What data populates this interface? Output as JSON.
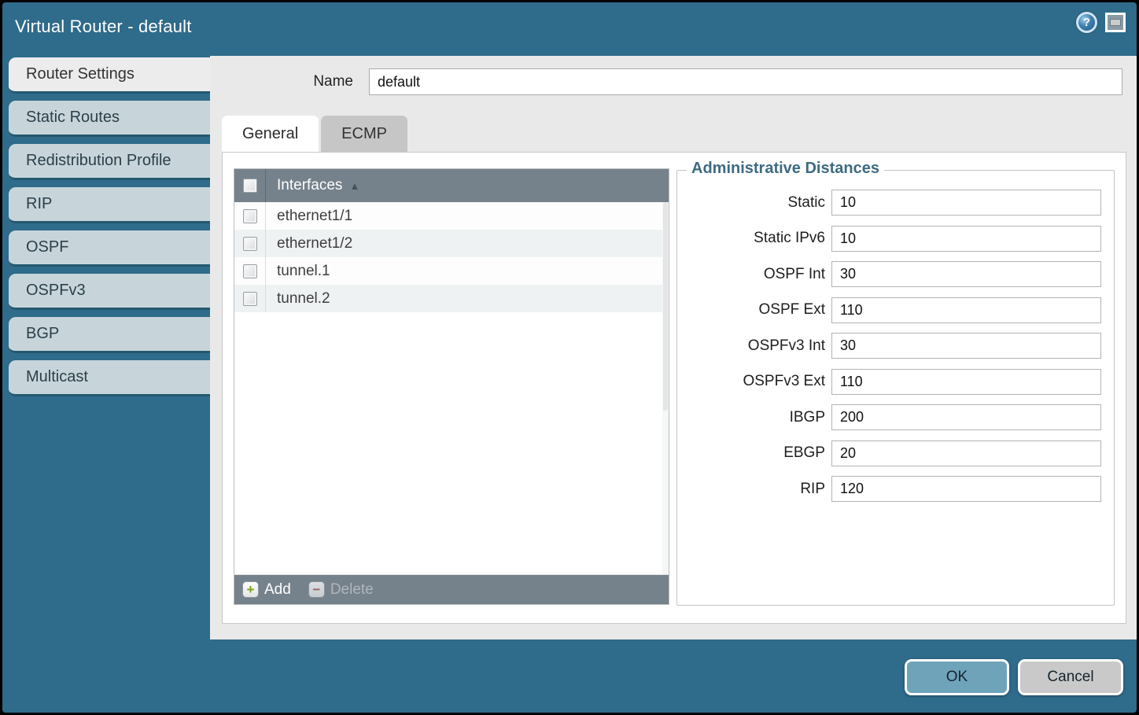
{
  "window": {
    "title": "Virtual Router - default",
    "icons": {
      "help": "?",
      "window": "window-restore"
    }
  },
  "colors": {
    "dialog_teal": "#2F6B8A",
    "sidebar_tab": "#C7D5DA",
    "content_bg": "#E9E9E9",
    "table_header": "#76828B",
    "ok_button": "#6FA3BA",
    "cancel_button": "#C9C9C9",
    "legend_text": "#3E6B82",
    "add_icon_green": "#7BA314",
    "delete_icon_red": "#9E5B50"
  },
  "sidebar": {
    "items": [
      {
        "label": "Router Settings",
        "active": true
      },
      {
        "label": "Static Routes",
        "active": false
      },
      {
        "label": "Redistribution Profile",
        "active": false
      },
      {
        "label": "RIP",
        "active": false
      },
      {
        "label": "OSPF",
        "active": false
      },
      {
        "label": "OSPFv3",
        "active": false
      },
      {
        "label": "BGP",
        "active": false
      },
      {
        "label": "Multicast",
        "active": false
      }
    ]
  },
  "form": {
    "name_label": "Name",
    "name_value": "default"
  },
  "tabs": [
    {
      "label": "General",
      "active": true
    },
    {
      "label": "ECMP",
      "active": false
    }
  ],
  "interfaces_table": {
    "header": "Interfaces",
    "sort_arrow": "▲",
    "rows": [
      {
        "name": "ethernet1/1",
        "checked": false
      },
      {
        "name": "ethernet1/2",
        "checked": false
      },
      {
        "name": "tunnel.1",
        "checked": false
      },
      {
        "name": "tunnel.2",
        "checked": false
      }
    ],
    "add_label": "Add",
    "add_glyph": "+",
    "delete_label": "Delete",
    "delete_glyph": "−",
    "delete_enabled": false
  },
  "admin_distances": {
    "legend": "Administrative Distances",
    "fields": [
      {
        "label": "Static",
        "value": "10"
      },
      {
        "label": "Static IPv6",
        "value": "10"
      },
      {
        "label": "OSPF Int",
        "value": "30"
      },
      {
        "label": "OSPF Ext",
        "value": "110"
      },
      {
        "label": "OSPFv3 Int",
        "value": "30"
      },
      {
        "label": "OSPFv3 Ext",
        "value": "110"
      },
      {
        "label": "IBGP",
        "value": "200"
      },
      {
        "label": "EBGP",
        "value": "20"
      },
      {
        "label": "RIP",
        "value": "120"
      }
    ]
  },
  "footer": {
    "ok_label": "OK",
    "cancel_label": "Cancel"
  }
}
